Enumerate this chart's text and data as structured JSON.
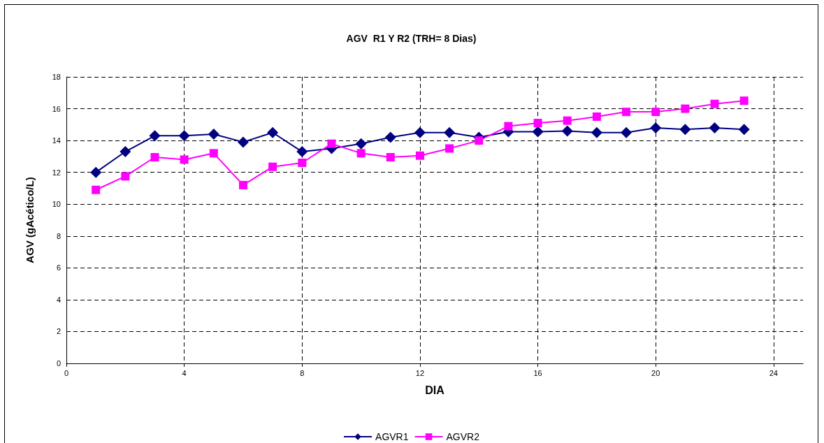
{
  "chart_data": {
    "type": "line",
    "title": "AGV  R1 Y R2 (TRH= 8 Dias)",
    "xlabel": "DIA",
    "ylabel": "AGV (gAcético/L)",
    "x": [
      1,
      2,
      3,
      4,
      5,
      6,
      7,
      8,
      9,
      10,
      11,
      12,
      13,
      14,
      15,
      16,
      17,
      18,
      19,
      20,
      21,
      22,
      23
    ],
    "series": [
      {
        "name": "AGVR1",
        "color": "#000080",
        "marker": "diamond",
        "values": [
          12.0,
          13.3,
          14.3,
          14.3,
          14.4,
          13.9,
          14.5,
          13.3,
          13.5,
          13.8,
          14.2,
          14.5,
          14.5,
          14.2,
          14.55,
          14.55,
          14.6,
          14.5,
          14.5,
          14.8,
          14.7,
          14.8,
          14.7
        ]
      },
      {
        "name": "AGVR2",
        "color": "#ff00ff",
        "marker": "square",
        "values": [
          10.9,
          11.75,
          12.95,
          12.8,
          13.2,
          11.2,
          12.35,
          12.6,
          13.8,
          13.2,
          12.95,
          13.05,
          13.5,
          14.0,
          14.9,
          15.1,
          15.25,
          15.5,
          15.8,
          15.8,
          16.0,
          16.3,
          16.5
        ]
      }
    ],
    "xlim": [
      0,
      25
    ],
    "xticks": [
      0,
      4,
      8,
      12,
      16,
      20,
      24
    ],
    "ylim": [
      0,
      18
    ],
    "yticks": [
      0,
      2,
      4,
      6,
      8,
      10,
      12,
      14,
      16,
      18
    ],
    "grid": true,
    "legend": "bottom",
    "line_style": "solid"
  }
}
